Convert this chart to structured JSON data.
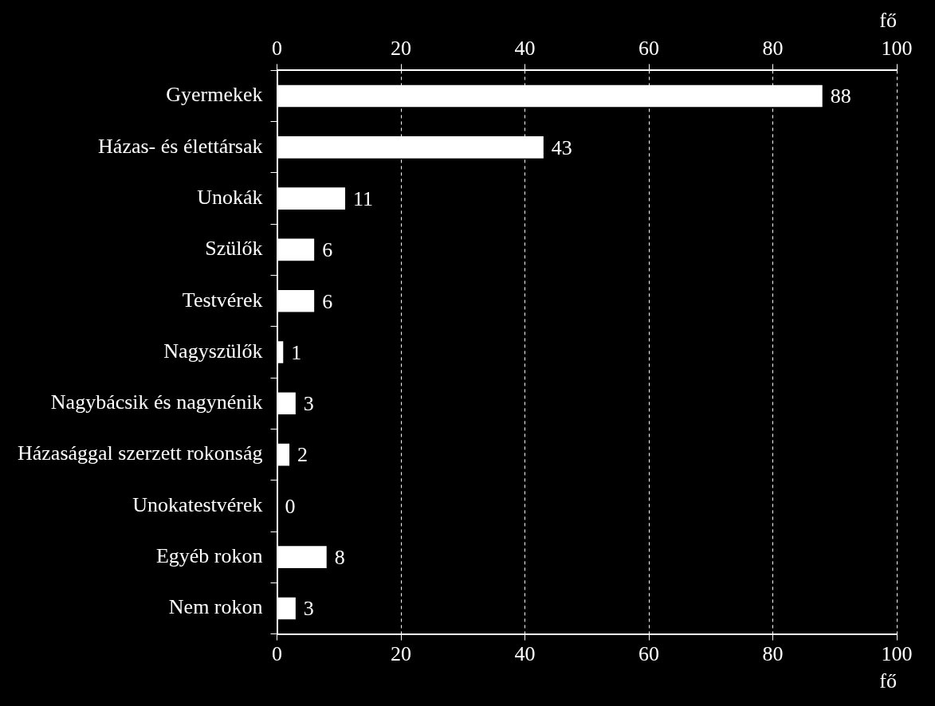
{
  "chart_data": {
    "type": "bar",
    "orientation": "horizontal",
    "categories": [
      "Gyermekek",
      "Házas- és élettársak",
      "Unokák",
      "Szülők",
      "Testvérek",
      "Nagyszülők",
      "Nagybácsik és nagynénik",
      "Házasággal szerzett rokonság",
      "Unokatestvérek",
      "Egyéb rokon",
      "Nem rokon"
    ],
    "values": [
      88,
      43,
      11,
      6,
      6,
      1,
      3,
      2,
      0,
      8,
      3
    ],
    "color": "#ffffff",
    "xlabel": "fő",
    "x2label": "fő",
    "xlim": [
      0,
      100
    ],
    "xticks": [
      0,
      20,
      40,
      60,
      80,
      100
    ],
    "x2lim": [
      0,
      100
    ],
    "x2ticks": [
      0,
      20,
      40,
      60,
      80,
      100
    ],
    "grid": "x",
    "data_labels": true,
    "legend": false
  }
}
